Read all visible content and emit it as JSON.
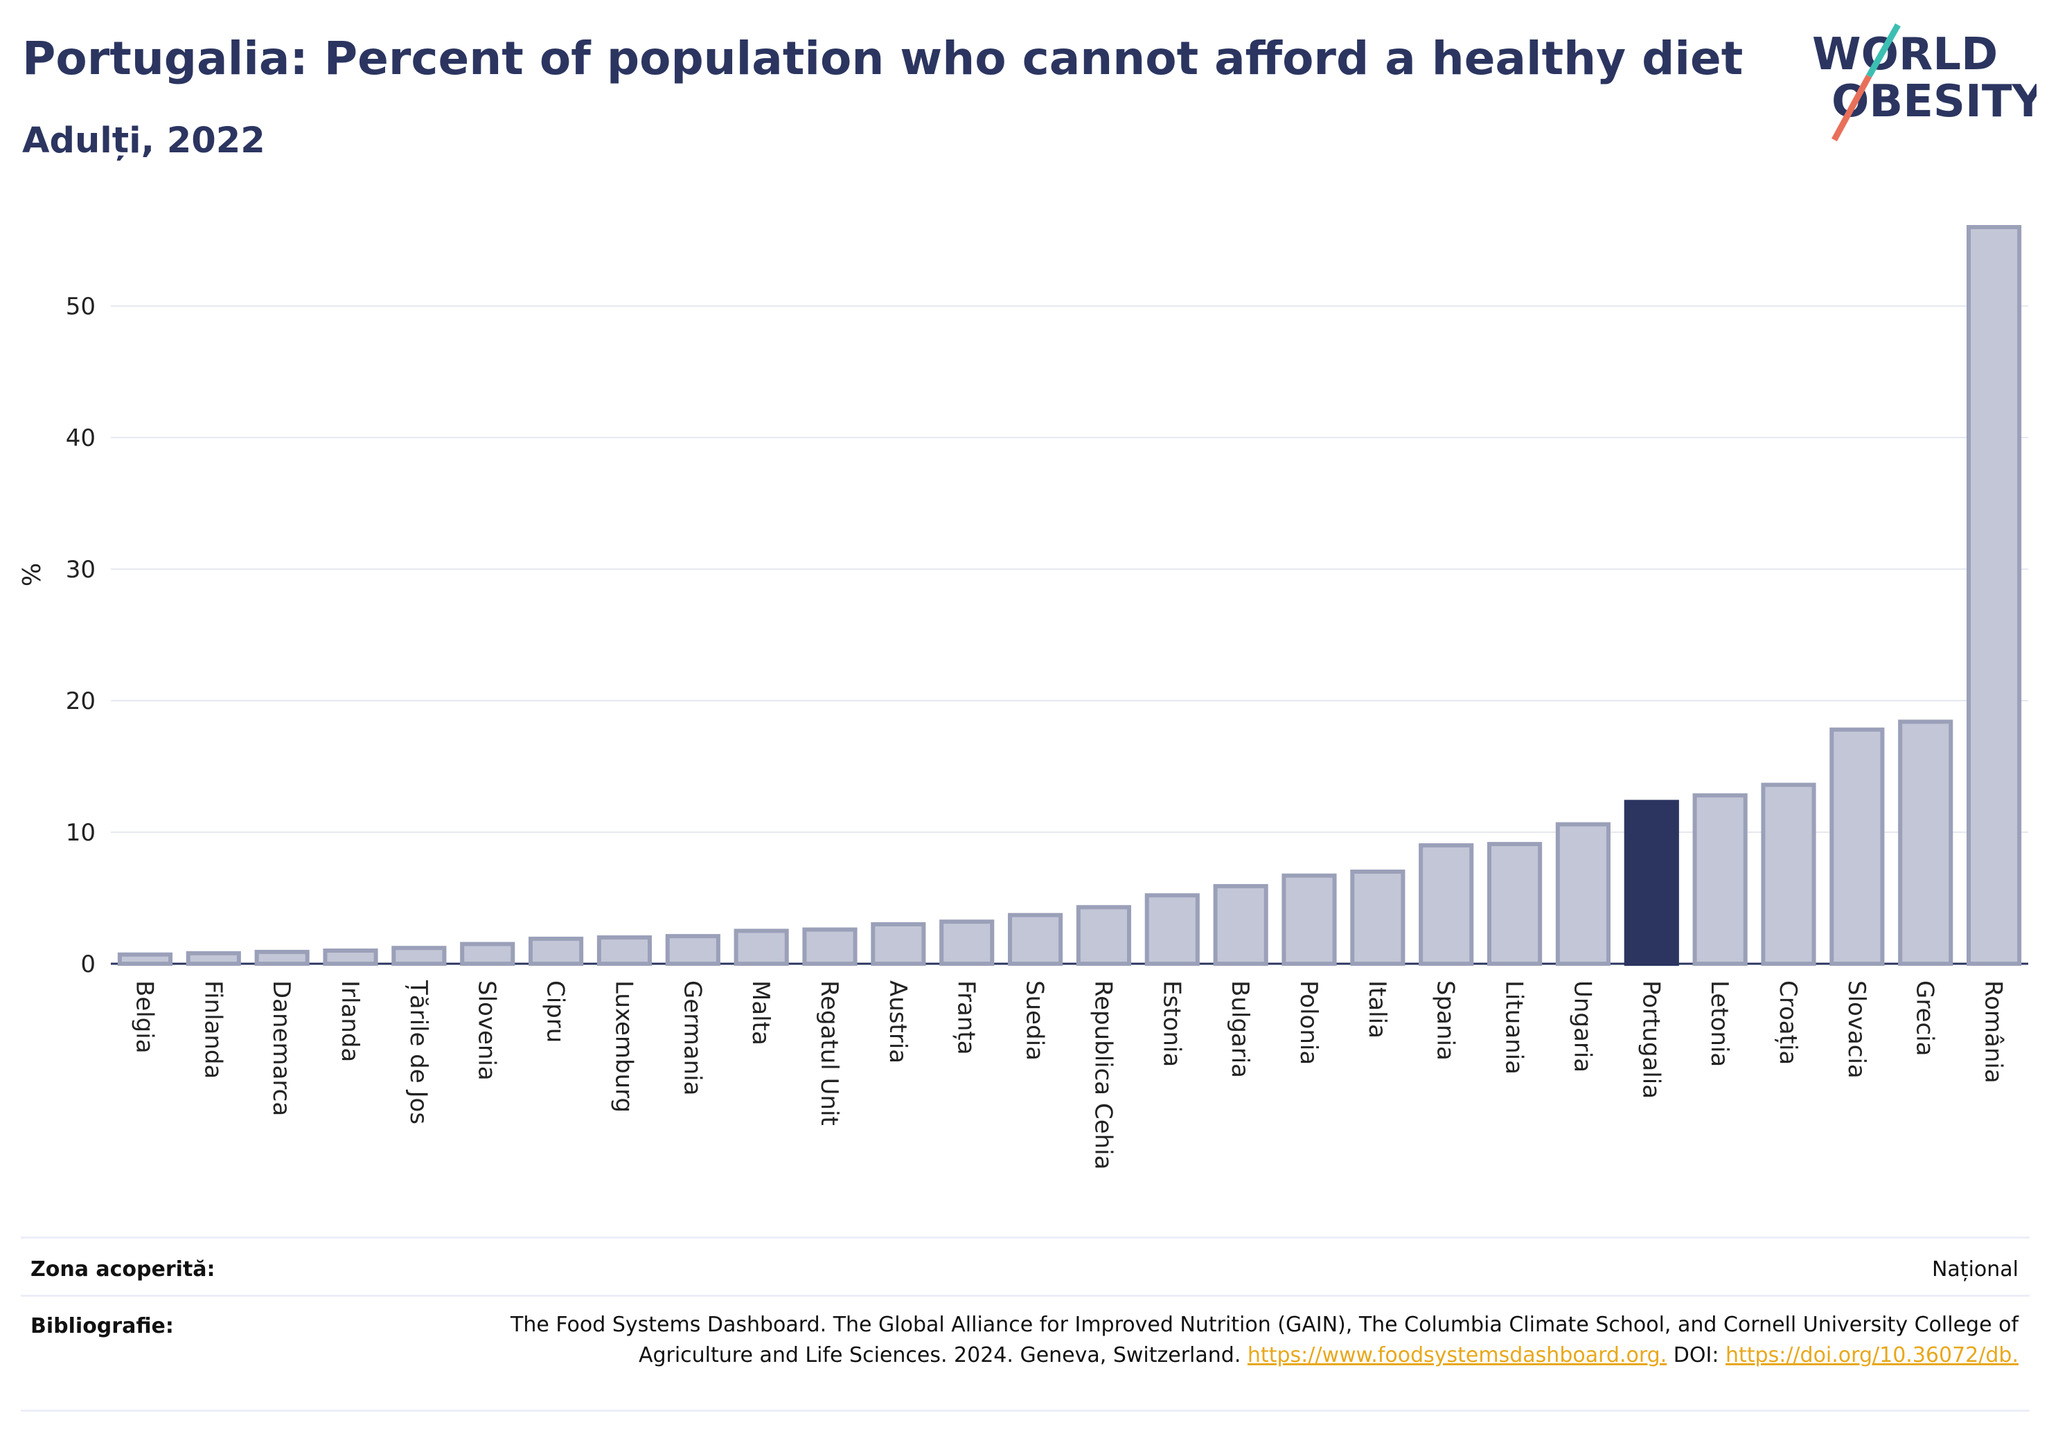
{
  "header": {
    "title": "Portugalia: Percent of population who cannot afford a healthy diet",
    "subtitle": "Adulți, 2022",
    "logo_line1": "WORLD",
    "logo_line2": "OBESITY"
  },
  "chart_data": {
    "type": "bar",
    "title": "Portugalia: Percent of population who cannot afford a healthy diet",
    "subtitle": "Adulți, 2022",
    "xlabel": "",
    "ylabel": "%",
    "ylim": [
      0,
      57
    ],
    "yticks": [
      0,
      10,
      20,
      30,
      40,
      50
    ],
    "grid": true,
    "highlight": "Portugalia",
    "colors": {
      "bar_fill": "#c3c6d6",
      "bar_stroke": "#9ba0b9",
      "highlight_fill": "#2b3560",
      "grid": "#e6e8f0",
      "axis": "#2b3560"
    },
    "categories": [
      "Belgia",
      "Finlanda",
      "Danemarca",
      "Irlanda",
      "Țările de Jos",
      "Slovenia",
      "Cipru",
      "Luxemburg",
      "Germania",
      "Malta",
      "Regatul Unit",
      "Austria",
      "Franța",
      "Suedia",
      "Republica Cehia",
      "Estonia",
      "Bulgaria",
      "Polonia",
      "Italia",
      "Spania",
      "Lituania",
      "Ungaria",
      "Portugalia",
      "Letonia",
      "Croația",
      "Slovacia",
      "Grecia",
      "România"
    ],
    "values": [
      0.7,
      0.8,
      0.9,
      1.0,
      1.2,
      1.5,
      1.9,
      2.0,
      2.1,
      2.5,
      2.6,
      3.0,
      3.2,
      3.7,
      4.3,
      5.2,
      5.9,
      6.7,
      7.0,
      9.0,
      9.1,
      10.6,
      12.3,
      12.8,
      13.6,
      17.8,
      18.4,
      56.0
    ]
  },
  "footer": {
    "coverage_label": "Zona acoperită:",
    "coverage_value": "Național",
    "biblio_label": "Bibliografie:",
    "biblio_text_1": "The Food Systems Dashboard. The Global Alliance for Improved Nutrition (GAIN), The Columbia Climate School, and Cornell University College of Agriculture and Life Sciences. 2024. Geneva, Switzerland.",
    "biblio_link_1": "https://www.foodsystemsdashboard.org.",
    "biblio_doi_label": "DOI:",
    "biblio_link_2": "https://doi.org/10.36072/db."
  }
}
